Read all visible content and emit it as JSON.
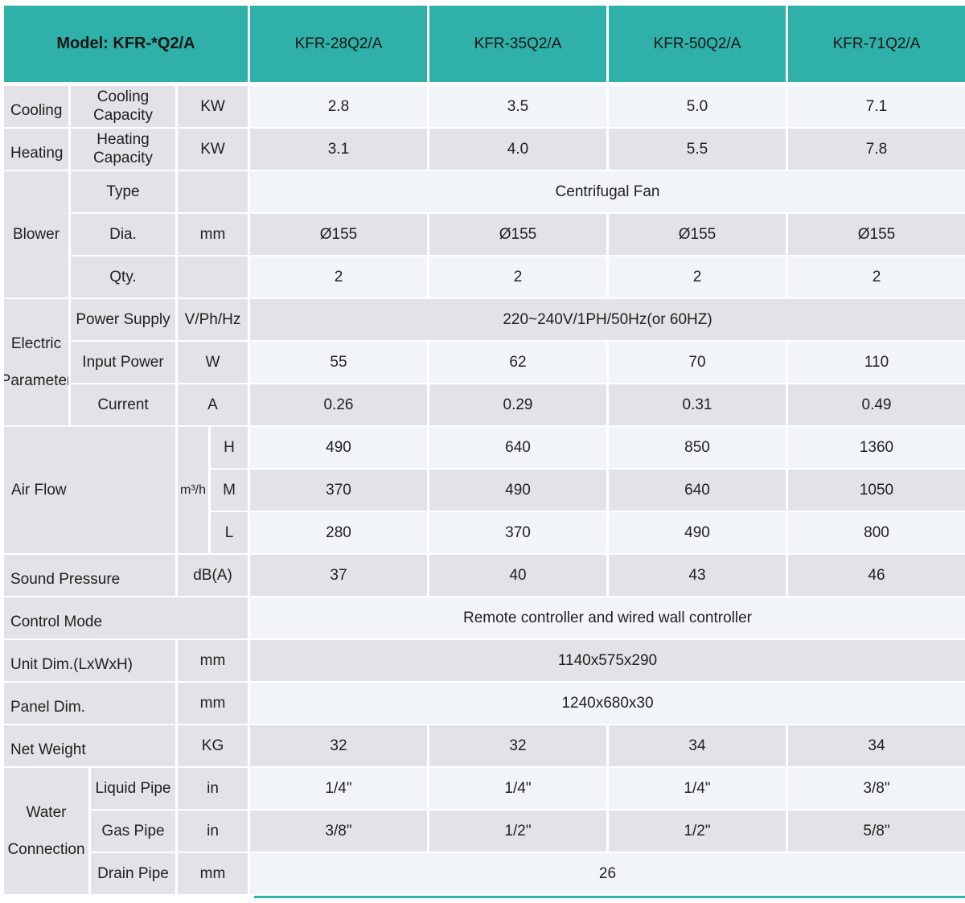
{
  "colors": {
    "accent_teal": "#2fb0a8",
    "light_cell": "#f1f5f8",
    "gray_cell": "#e3e3e7",
    "text": "#1f1f1f"
  },
  "header": {
    "model_label": "Model: KFR-*Q2/A",
    "columns": [
      "KFR-28Q2/A",
      "KFR-35Q2/A",
      "KFR-50Q2/A",
      "KFR-71Q2/A"
    ]
  },
  "rows": {
    "cooling": {
      "group": "Cooling",
      "label": "Cooling Capacity",
      "unit": "KW",
      "values": [
        "2.8",
        "3.5",
        "5.0",
        "7.1"
      ]
    },
    "heating": {
      "group": "Heating",
      "label": "Heating Capacity",
      "unit": "KW",
      "values": [
        "3.1",
        "4.0",
        "5.5",
        "7.8"
      ]
    },
    "blower": {
      "group": "Blower",
      "type": {
        "label": "Type",
        "unit": "",
        "span_value": "Centrifugal Fan"
      },
      "dia": {
        "label": "Dia.",
        "unit": "mm",
        "values": [
          "Ø155",
          "Ø155",
          "Ø155",
          "Ø155"
        ]
      },
      "qty": {
        "label": "Qty.",
        "unit": "",
        "values": [
          "2",
          "2",
          "2",
          "2"
        ]
      }
    },
    "electric": {
      "group": "Electric Parameter",
      "power_supply": {
        "label": "Power Supply",
        "unit": "V/Ph/Hz",
        "span_value": "220~240V/1PH/50Hz(or 60HZ)"
      },
      "input_power": {
        "label": "Input Power",
        "unit": "W",
        "values": [
          "55",
          "62",
          "70",
          "110"
        ]
      },
      "current": {
        "label": "Current",
        "unit": "A",
        "values": [
          "0.26",
          "0.29",
          "0.31",
          "0.49"
        ]
      }
    },
    "air_flow": {
      "group": "Air Flow",
      "unit": "m³/h",
      "h": {
        "label": "H",
        "values": [
          "490",
          "640",
          "850",
          "1360"
        ]
      },
      "m": {
        "label": "M",
        "values": [
          "370",
          "490",
          "640",
          "1050"
        ]
      },
      "l": {
        "label": "L",
        "values": [
          "280",
          "370",
          "490",
          "800"
        ]
      }
    },
    "sound": {
      "label": "Sound Pressure",
      "unit": "dB(A)",
      "values": [
        "37",
        "40",
        "43",
        "46"
      ]
    },
    "control_mode": {
      "label": "Control Mode",
      "span_value": "Remote controller and wired wall controller"
    },
    "unit_dim": {
      "label": "Unit Dim.(LxWxH)",
      "unit": "mm",
      "span_value": "1140x575x290"
    },
    "panel_dim": {
      "label": "Panel Dim.",
      "unit": "mm",
      "span_value": "1240x680x30"
    },
    "net_weight": {
      "label": "Net Weight",
      "unit": "KG",
      "values": [
        "32",
        "32",
        "34",
        "34"
      ]
    },
    "water": {
      "group": "Water Connection",
      "liquid": {
        "label": "Liquid Pipe",
        "unit": "in",
        "values": [
          "1/4\"",
          "1/4\"",
          "1/4\"",
          "3/8\""
        ]
      },
      "gas": {
        "label": "Gas Pipe",
        "unit": "in",
        "values": [
          "3/8\"",
          "1/2\"",
          "1/2\"",
          "5/8\""
        ]
      },
      "drain": {
        "label": "Drain Pipe",
        "unit": "mm",
        "span_value": "26"
      }
    }
  }
}
